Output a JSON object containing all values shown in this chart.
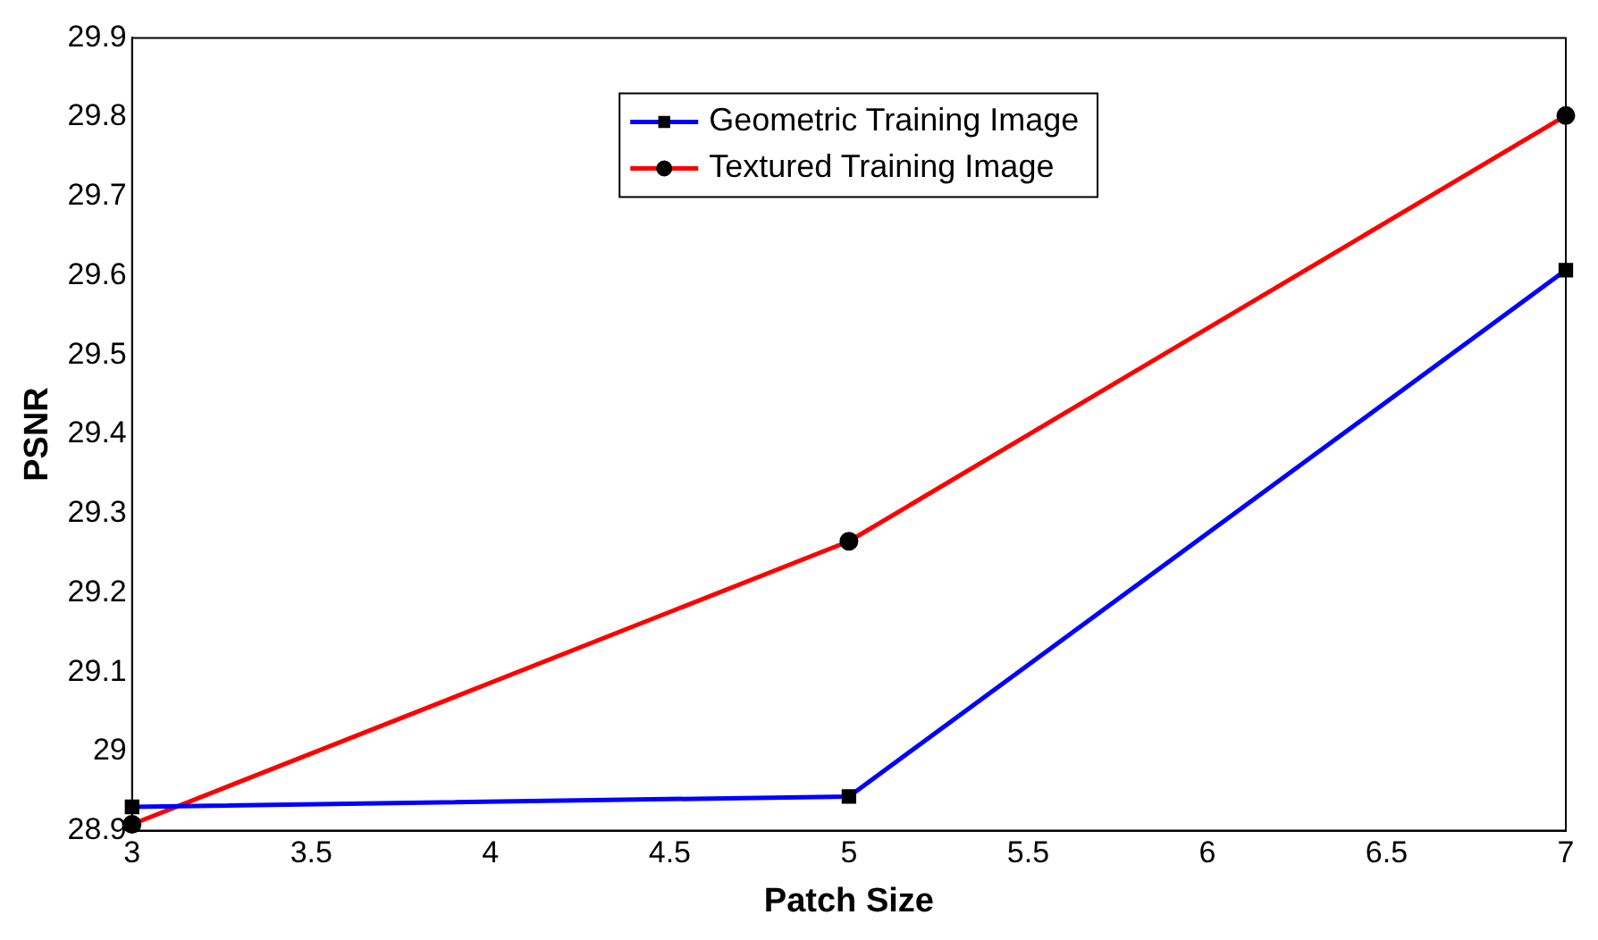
{
  "chart_data": {
    "type": "line",
    "xlabel": "Patch Size",
    "ylabel": "PSNR",
    "x": [
      3,
      5,
      7
    ],
    "series": [
      {
        "name": "Geometric Training Image",
        "color": "#0000ff",
        "values": [
          28.93,
          28.943,
          29.607
        ],
        "marker": "square"
      },
      {
        "name": "Textured Training Image",
        "color": "#ff0000",
        "values": [
          28.908,
          29.265,
          29.802
        ],
        "marker": "circle"
      }
    ],
    "xlim": [
      3,
      7
    ],
    "xticks": [
      3,
      3.5,
      4,
      4.5,
      5,
      5.5,
      6,
      6.5,
      7
    ],
    "ylim": [
      28.9,
      29.9
    ],
    "yticks": [
      28.9,
      29,
      29.1,
      29.2,
      29.3,
      29.4,
      29.5,
      29.6,
      29.7,
      29.8,
      29.9
    ],
    "grid": false,
    "legend": "top",
    "line_style": "solid"
  }
}
